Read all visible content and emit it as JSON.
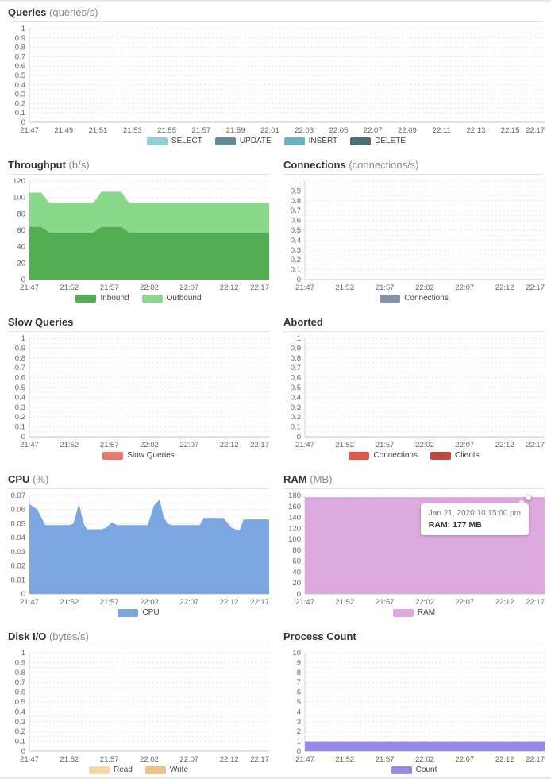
{
  "x_axis": {
    "start": "21:47",
    "end": "22:17",
    "total_minutes": 30,
    "ticks_2min_labels": [
      "21:47",
      "21:49",
      "21:51",
      "21:53",
      "21:55",
      "21:57",
      "21:59",
      "22:01",
      "22:03",
      "22:05",
      "22:07",
      "22:09",
      "22:11",
      "22:13",
      "22:15",
      "22:17"
    ],
    "ticks_2min_minutes": [
      0,
      2,
      4,
      6,
      8,
      10,
      12,
      14,
      16,
      18,
      20,
      22,
      24,
      26,
      28,
      30
    ],
    "ticks_5min_labels": [
      "21:47",
      "21:52",
      "21:57",
      "22:02",
      "22:07",
      "22:12",
      "22:17"
    ],
    "ticks_5min_minutes": [
      0,
      5,
      10,
      15,
      20,
      25,
      30
    ]
  },
  "chart_data": [
    {
      "id": "queries",
      "type": "area",
      "title": "Queries",
      "unit": "(queries/s)",
      "ylim": [
        0,
        1
      ],
      "yticks": [
        0,
        0.1,
        0.2,
        0.3,
        0.4,
        0.5,
        0.6,
        0.7,
        0.8,
        0.9,
        1
      ],
      "ytick_labels": [
        "0",
        "0.1",
        "0.2",
        "0.3",
        "0.4",
        "0.5",
        "0.6",
        "0.7",
        "0.8",
        "0.9",
        "1"
      ],
      "xtick_minutes": [
        0,
        2,
        4,
        6,
        8,
        10,
        12,
        14,
        16,
        18,
        20,
        22,
        24,
        26,
        28,
        30
      ],
      "xtick_labels": [
        "21:47",
        "21:49",
        "21:51",
        "21:53",
        "21:55",
        "21:57",
        "21:59",
        "22:01",
        "22:03",
        "22:05",
        "22:07",
        "22:09",
        "22:11",
        "22:13",
        "22:15",
        "22:17"
      ],
      "grid": "horizontal-dashed",
      "legend_position": "bottom",
      "stacked": false,
      "series": [
        {
          "name": "SELECT",
          "color": "#8ed2d8",
          "points": []
        },
        {
          "name": "UPDATE",
          "color": "#5f8c96",
          "points": []
        },
        {
          "name": "INSERT",
          "color": "#69b4c0",
          "points": []
        },
        {
          "name": "DELETE",
          "color": "#4e6d78",
          "points": []
        }
      ]
    },
    {
      "id": "throughput",
      "type": "area",
      "title": "Throughput",
      "unit": "(b/s)",
      "ylim": [
        0,
        120
      ],
      "yticks": [
        0,
        20,
        40,
        60,
        80,
        100,
        120
      ],
      "ytick_labels": [
        "0",
        "20",
        "40",
        "60",
        "80",
        "100",
        "120"
      ],
      "xtick_minutes": [
        0,
        5,
        10,
        15,
        20,
        25,
        30
      ],
      "xtick_labels": [
        "21:47",
        "21:52",
        "21:57",
        "22:02",
        "22:07",
        "22:12",
        "22:17"
      ],
      "grid": "horizontal-dashed",
      "legend_position": "bottom",
      "stacked": true,
      "series": [
        {
          "name": "Inbound",
          "color": "#52ae52",
          "points": [
            [
              0,
              64
            ],
            [
              1.5,
              64
            ],
            [
              2.5,
              57
            ],
            [
              8,
              57
            ],
            [
              9,
              64
            ],
            [
              11.5,
              64
            ],
            [
              12.5,
              57
            ],
            [
              30,
              57
            ]
          ]
        },
        {
          "name": "Outbound",
          "color": "#8ad88a",
          "points": [
            [
              0,
              42
            ],
            [
              1.5,
              42
            ],
            [
              2.5,
              36
            ],
            [
              8,
              36
            ],
            [
              9,
              43
            ],
            [
              11.5,
              43
            ],
            [
              12.5,
              36
            ],
            [
              30,
              36
            ]
          ]
        }
      ]
    },
    {
      "id": "connections",
      "type": "area",
      "title": "Connections",
      "unit": "(connections/s)",
      "ylim": [
        0,
        1
      ],
      "yticks": [
        0,
        0.1,
        0.2,
        0.3,
        0.4,
        0.5,
        0.6,
        0.7,
        0.8,
        0.9,
        1
      ],
      "ytick_labels": [
        "0",
        "0.1",
        "0.2",
        "0.3",
        "0.4",
        "0.5",
        "0.6",
        "0.7",
        "0.8",
        "0.9",
        "1"
      ],
      "xtick_minutes": [
        0,
        5,
        10,
        15,
        20,
        25,
        30
      ],
      "xtick_labels": [
        "21:47",
        "21:52",
        "21:57",
        "22:02",
        "22:07",
        "22:12",
        "22:17"
      ],
      "grid": "horizontal-dashed",
      "legend_position": "bottom",
      "stacked": false,
      "series": [
        {
          "name": "Connections",
          "color": "#8492aa",
          "points": []
        }
      ]
    },
    {
      "id": "slow_queries",
      "type": "area",
      "title": "Slow Queries",
      "unit": "",
      "ylim": [
        0,
        1
      ],
      "yticks": [
        0,
        0.1,
        0.2,
        0.3,
        0.4,
        0.5,
        0.6,
        0.7,
        0.8,
        0.9,
        1
      ],
      "ytick_labels": [
        "0",
        "0.1",
        "0.2",
        "0.3",
        "0.4",
        "0.5",
        "0.6",
        "0.7",
        "0.8",
        "0.9",
        "1"
      ],
      "xtick_minutes": [
        0,
        5,
        10,
        15,
        20,
        25,
        30
      ],
      "xtick_labels": [
        "21:47",
        "21:52",
        "21:57",
        "22:02",
        "22:07",
        "22:12",
        "22:17"
      ],
      "grid": "horizontal-dashed",
      "legend_position": "bottom",
      "stacked": false,
      "series": [
        {
          "name": "Slow Queries",
          "color": "#e8786e",
          "points": []
        }
      ]
    },
    {
      "id": "aborted",
      "type": "area",
      "title": "Aborted",
      "unit": "",
      "ylim": [
        0,
        1
      ],
      "yticks": [
        0,
        0.1,
        0.2,
        0.3,
        0.4,
        0.5,
        0.6,
        0.7,
        0.8,
        0.9,
        1
      ],
      "ytick_labels": [
        "0",
        "0.1",
        "0.2",
        "0.3",
        "0.4",
        "0.5",
        "0.6",
        "0.7",
        "0.8",
        "0.9",
        "1"
      ],
      "xtick_minutes": [
        0,
        5,
        10,
        15,
        20,
        25,
        30
      ],
      "xtick_labels": [
        "21:47",
        "21:52",
        "21:57",
        "22:02",
        "22:07",
        "22:12",
        "22:17"
      ],
      "grid": "horizontal-dashed",
      "legend_position": "bottom",
      "stacked": false,
      "series": [
        {
          "name": "Connections",
          "color": "#e2564a",
          "points": []
        },
        {
          "name": "Clients",
          "color": "#bd4a3e",
          "points": []
        }
      ]
    },
    {
      "id": "cpu",
      "type": "area",
      "title": "CPU",
      "unit": "(%)",
      "ylim": [
        0,
        0.07
      ],
      "yticks": [
        0,
        0.01,
        0.02,
        0.03,
        0.04,
        0.05,
        0.06,
        0.07
      ],
      "ytick_labels": [
        "0",
        "0.01",
        "0.02",
        "0.03",
        "0.04",
        "0.05",
        "0.06",
        "0.07"
      ],
      "xtick_minutes": [
        0,
        5,
        10,
        15,
        20,
        25,
        30
      ],
      "xtick_labels": [
        "21:47",
        "21:52",
        "21:57",
        "22:02",
        "22:07",
        "22:12",
        "22:17"
      ],
      "grid": "horizontal-dashed",
      "legend_position": "bottom",
      "stacked": false,
      "series": [
        {
          "name": "CPU",
          "color": "#7ba6e0",
          "points": [
            [
              0,
              0.064
            ],
            [
              1,
              0.06
            ],
            [
              2,
              0.049
            ],
            [
              5,
              0.049
            ],
            [
              5.5,
              0.05
            ],
            [
              6.2,
              0.064
            ],
            [
              6.8,
              0.05
            ],
            [
              7.2,
              0.046
            ],
            [
              9,
              0.046
            ],
            [
              9.6,
              0.047
            ],
            [
              10.3,
              0.051
            ],
            [
              11,
              0.049
            ],
            [
              14.8,
              0.049
            ],
            [
              15.6,
              0.063
            ],
            [
              16.3,
              0.067
            ],
            [
              16.8,
              0.055
            ],
            [
              17.3,
              0.05
            ],
            [
              17.8,
              0.049
            ],
            [
              21.3,
              0.049
            ],
            [
              21.8,
              0.054
            ],
            [
              24.3,
              0.054
            ],
            [
              25.3,
              0.047
            ],
            [
              26.3,
              0.045
            ],
            [
              26.8,
              0.053
            ],
            [
              30,
              0.053
            ]
          ]
        }
      ]
    },
    {
      "id": "ram",
      "type": "area",
      "title": "RAM",
      "unit": "(MB)",
      "ylim": [
        0,
        180
      ],
      "yticks": [
        0,
        20,
        40,
        60,
        80,
        100,
        120,
        140,
        160,
        180
      ],
      "ytick_labels": [
        "0",
        "20",
        "40",
        "60",
        "80",
        "100",
        "120",
        "140",
        "160",
        "180"
      ],
      "xtick_minutes": [
        0,
        5,
        10,
        15,
        20,
        25,
        30
      ],
      "xtick_labels": [
        "21:47",
        "21:52",
        "21:57",
        "22:02",
        "22:07",
        "22:12",
        "22:17"
      ],
      "grid": "horizontal-dashed",
      "legend_position": "bottom",
      "stacked": false,
      "series": [
        {
          "name": "RAM",
          "color": "#dcaade",
          "points": [
            [
              0,
              177
            ],
            [
              30,
              177
            ]
          ]
        }
      ],
      "tooltip": {
        "timestamp": "Jan 21, 2020 10:15:00 pm",
        "value_label": "RAM: 177 MB",
        "at_minute": 28,
        "value": 177
      }
    },
    {
      "id": "disk_io",
      "type": "area",
      "title": "Disk I/O",
      "unit": "(bytes/s)",
      "ylim": [
        0,
        1
      ],
      "yticks": [
        0,
        0.1,
        0.2,
        0.3,
        0.4,
        0.5,
        0.6,
        0.7,
        0.8,
        0.9,
        1
      ],
      "ytick_labels": [
        "0",
        "0.1",
        "0.2",
        "0.3",
        "0.4",
        "0.5",
        "0.6",
        "0.7",
        "0.8",
        "0.9",
        "1"
      ],
      "xtick_minutes": [
        0,
        5,
        10,
        15,
        20,
        25,
        30
      ],
      "xtick_labels": [
        "21:47",
        "21:52",
        "21:57",
        "22:02",
        "22:07",
        "22:12",
        "22:17"
      ],
      "grid": "horizontal-dashed",
      "legend_position": "bottom",
      "stacked": false,
      "series": [
        {
          "name": "Read",
          "color": "#f2d9a4",
          "points": []
        },
        {
          "name": "Write",
          "color": "#e9c389",
          "points": []
        }
      ]
    },
    {
      "id": "process_count",
      "type": "area",
      "title": "Process Count",
      "unit": "",
      "ylim": [
        0,
        10
      ],
      "yticks": [
        0,
        1,
        2,
        3,
        4,
        5,
        6,
        7,
        8,
        9,
        10
      ],
      "ytick_labels": [
        "0",
        "1",
        "2",
        "3",
        "4",
        "5",
        "6",
        "7",
        "8",
        "9",
        "10"
      ],
      "xtick_minutes": [
        0,
        5,
        10,
        15,
        20,
        25,
        30
      ],
      "xtick_labels": [
        "21:47",
        "21:52",
        "21:57",
        "22:02",
        "22:07",
        "22:12",
        "22:17"
      ],
      "grid": "horizontal-dashed",
      "legend_position": "bottom",
      "stacked": false,
      "series": [
        {
          "name": "Count",
          "color": "#948ae8",
          "points": [
            [
              0,
              1
            ],
            [
              30,
              1
            ]
          ]
        }
      ]
    }
  ]
}
